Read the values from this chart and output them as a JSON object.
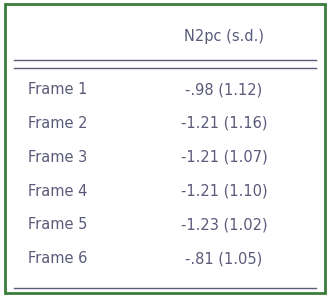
{
  "col_header": "N2pc (s.d.)",
  "rows": [
    {
      "label": "Frame 1",
      "value": "-.98 (1.12)"
    },
    {
      "label": "Frame 2",
      "value": "-1.21 (1.16)"
    },
    {
      "label": "Frame 3",
      "value": "-1.21 (1.07)"
    },
    {
      "label": "Frame 4",
      "value": "-1.21 (1.10)"
    },
    {
      "label": "Frame 5",
      "value": "-1.23 (1.02)"
    },
    {
      "label": "Frame 6",
      "value": "-.81 (1.05)"
    }
  ],
  "border_color": "#3a7d3a",
  "text_color": "#5a5a7a",
  "header_line_color": "#5a5a7a",
  "bg_color": "#ffffff",
  "font_size": 10.5
}
